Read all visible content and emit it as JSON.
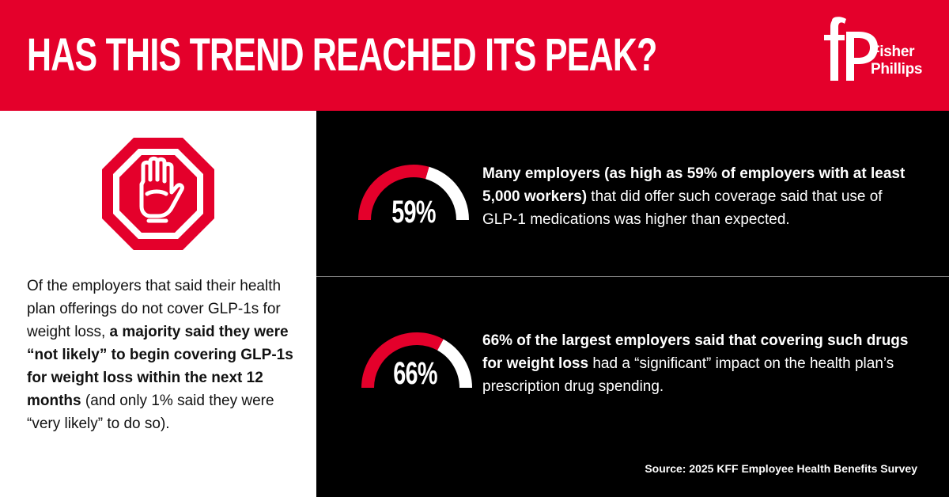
{
  "header": {
    "headline": "HAS THIS TREND REACHED ITS PEAK?",
    "background_color": "#e4002b"
  },
  "logo": {
    "monogram": "fP",
    "name_line1": "Fisher",
    "name_line2": "Phillips"
  },
  "left_panel": {
    "icon": "stop-hand-icon",
    "text_part1": "Of the employers that said their health plan offerings do not cover GLP-1s for weight loss, ",
    "text_bold": "a majority said they were “not likely” to begin covering GLP-1s for weight loss within the next 12 months",
    "text_part2": " (and only 1% said they were “very likely” to do so)."
  },
  "stats": [
    {
      "value": 59,
      "label": "59%",
      "bold": "Many employers (as high as 59% of employers with at least 5,000 workers)",
      "rest": " that did offer such coverage said that use of GLP-1 medications was higher than expected."
    },
    {
      "value": 66,
      "label": "66%",
      "bold": "66% of the largest employers said that covering such drugs for weight loss",
      "rest": " had a “significant” impact on the health plan’s prescription drug spending."
    }
  ],
  "source": "Source: 2025 KFF Employee Health Benefits Survey",
  "colors": {
    "accent": "#e4002b",
    "dark_panel": "#000000",
    "gauge_remainder": "#ffffff"
  }
}
